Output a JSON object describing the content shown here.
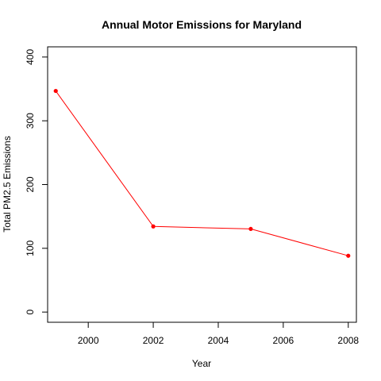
{
  "chart_data": {
    "type": "line",
    "title": "Annual Motor Emissions for Maryland",
    "xlabel": "Year",
    "ylabel": "Total PM2.5 Emissions",
    "x": [
      1999,
      2002,
      2005,
      2008
    ],
    "series": [
      {
        "values": [
          346.8,
          134.3,
          130.4,
          88.3
        ],
        "color": "#ff0000"
      }
    ],
    "xlim": [
      1998.75,
      2008.25
    ],
    "ylim": [
      -16,
      416
    ],
    "x_ticks": [
      2000,
      2002,
      2004,
      2006,
      2008
    ],
    "y_ticks": [
      0,
      100,
      200,
      300,
      400
    ],
    "grid": false
  }
}
